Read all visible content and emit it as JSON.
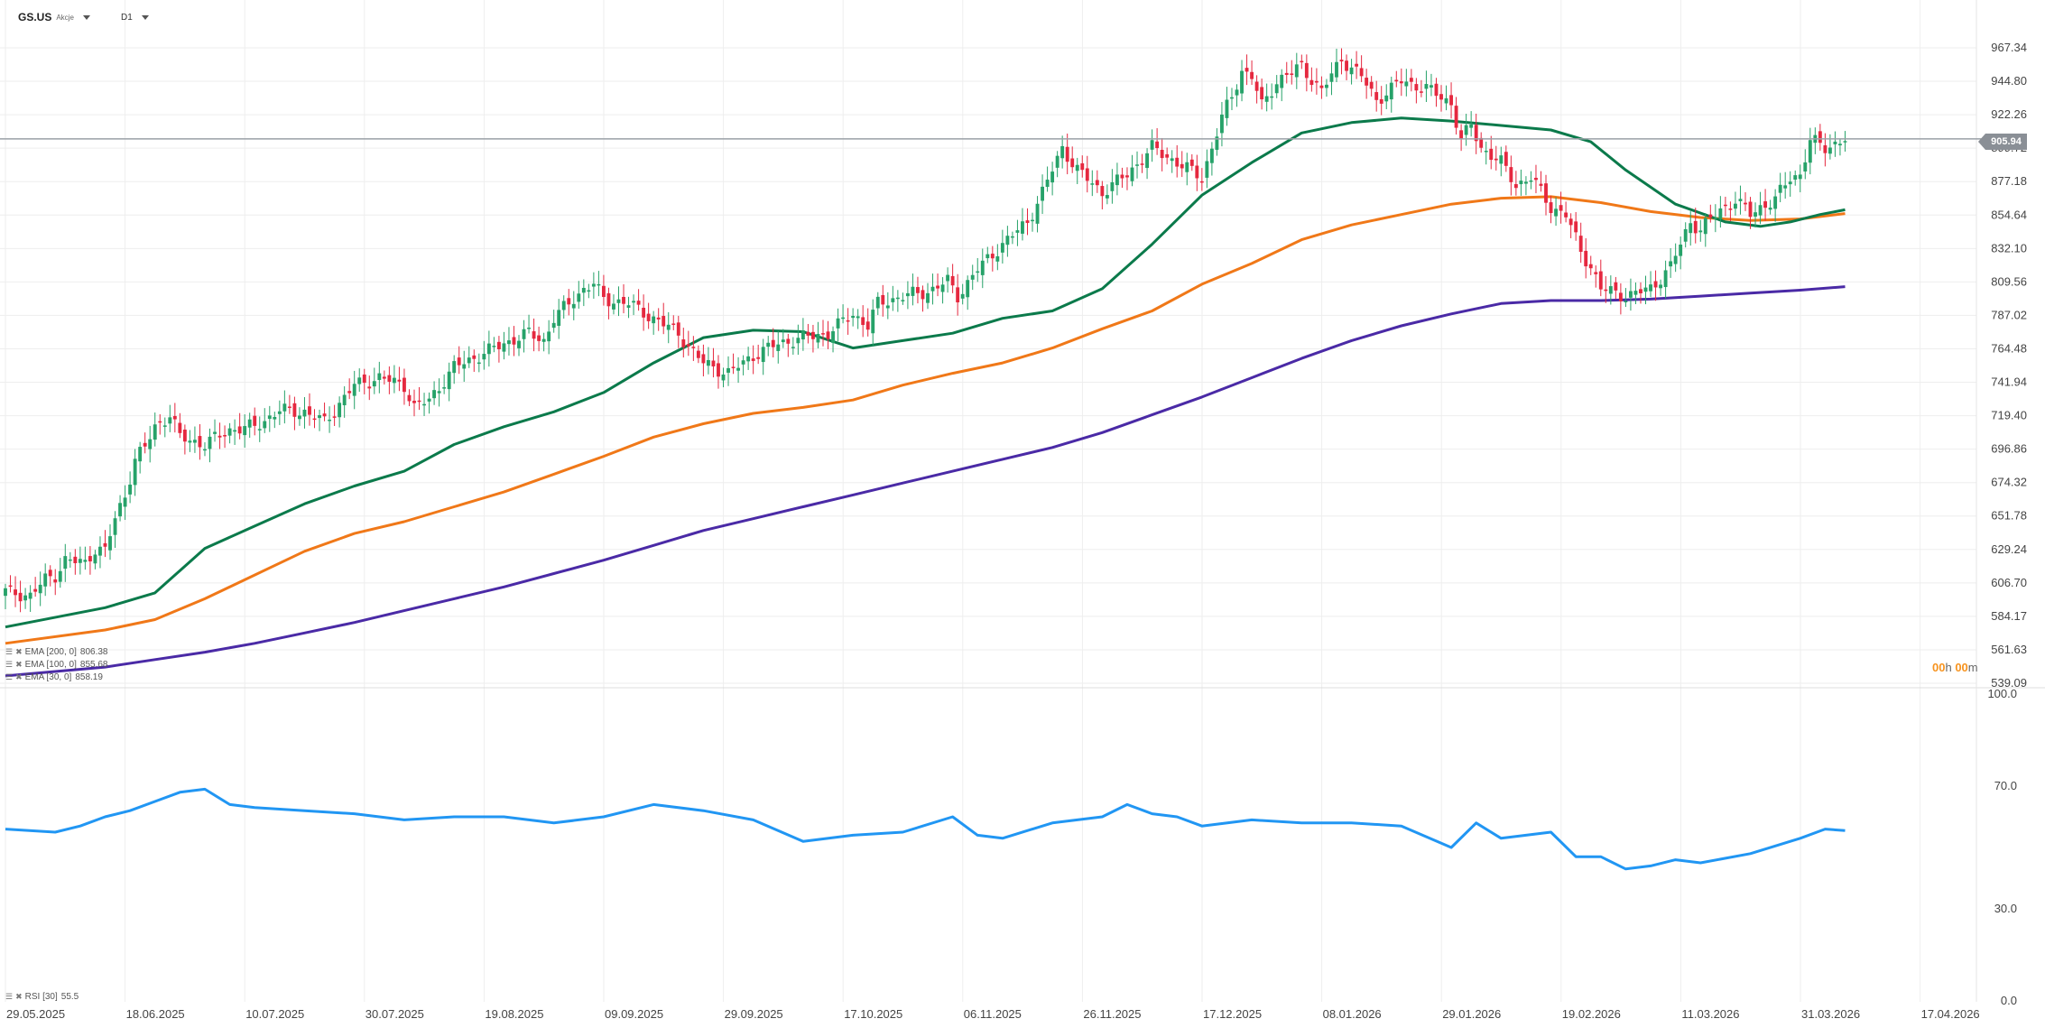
{
  "header": {
    "symbol": "GS.US",
    "symbol_sub": "Akcje",
    "timeframe": "D1"
  },
  "indicators": [
    {
      "label": "EMA [200, 0]",
      "value": "806.38"
    },
    {
      "label": "EMA [100, 0]",
      "value": "855.68"
    },
    {
      "label": "EMA [30, 0]",
      "value": "858.19"
    }
  ],
  "rsi_label": {
    "label": "RSI [30]",
    "value": "55.5"
  },
  "countdown": {
    "h": "00",
    "h_unit": "h",
    "m": "00",
    "m_unit": "m"
  },
  "price_tag": "905.94",
  "colors": {
    "up": "#26a269",
    "down": "#e5283f",
    "ema30": "#0b7a4b",
    "ema100": "#f07818",
    "ema200": "#4a2aa6",
    "rsi": "#2196f3",
    "grid": "#eeeeee",
    "price_line": "#9aa0a6"
  },
  "chart_data": [
    {
      "type": "candlestick",
      "title": "",
      "y_ticks": [
        967.34,
        944.8,
        922.26,
        899.72,
        877.18,
        854.64,
        832.1,
        809.56,
        787.02,
        764.48,
        741.94,
        719.4,
        696.86,
        674.32,
        651.78,
        629.24,
        606.7,
        584.17,
        561.63,
        539.09
      ],
      "ylim": [
        539.09,
        967.34
      ],
      "x_tick_labels": [
        "29.05.2025",
        "18.06.2025",
        "10.07.2025",
        "30.07.2025",
        "19.08.2025",
        "09.09.2025",
        "29.09.2025",
        "17.10.2025",
        "06.11.2025",
        "26.11.2025",
        "17.12.2025",
        "08.01.2026",
        "29.01.2026",
        "19.02.2026",
        "11.03.2026",
        "31.03.2026",
        "17.04.2026"
      ],
      "current_price": 905.94,
      "grid": true,
      "close_path": [
        [
          0,
          601
        ],
        [
          5,
          598
        ],
        [
          8,
          609
        ],
        [
          10,
          612
        ],
        [
          12,
          622
        ],
        [
          16,
          620
        ],
        [
          18,
          630
        ],
        [
          20,
          628
        ],
        [
          22,
          650
        ],
        [
          24,
          666
        ],
        [
          26,
          690
        ],
        [
          28,
          698
        ],
        [
          30,
          712
        ],
        [
          33,
          720
        ],
        [
          35,
          705
        ],
        [
          40,
          700
        ],
        [
          45,
          710
        ],
        [
          50,
          712
        ],
        [
          55,
          723
        ],
        [
          60,
          722
        ],
        [
          64,
          715
        ],
        [
          70,
          740
        ],
        [
          75,
          745
        ],
        [
          80,
          740
        ],
        [
          82,
          725
        ],
        [
          85,
          730
        ],
        [
          90,
          752
        ],
        [
          95,
          760
        ],
        [
          100,
          768
        ],
        [
          105,
          775
        ],
        [
          108,
          770
        ],
        [
          110,
          785
        ],
        [
          113,
          795
        ],
        [
          116,
          805
        ],
        [
          118,
          808
        ],
        [
          120,
          798
        ],
        [
          125,
          795
        ],
        [
          130,
          785
        ],
        [
          135,
          775
        ],
        [
          138,
          762
        ],
        [
          140,
          755
        ],
        [
          145,
          748
        ],
        [
          150,
          760
        ],
        [
          155,
          768
        ],
        [
          160,
          772
        ],
        [
          165,
          775
        ],
        [
          170,
          788
        ],
        [
          173,
          780
        ],
        [
          175,
          795
        ],
        [
          180,
          800
        ],
        [
          185,
          803
        ],
        [
          189,
          810
        ],
        [
          191,
          800
        ],
        [
          195,
          818
        ],
        [
          200,
          835
        ],
        [
          205,
          850
        ],
        [
          208,
          870
        ],
        [
          210,
          885
        ],
        [
          212,
          900
        ],
        [
          215,
          885
        ],
        [
          220,
          870
        ],
        [
          225,
          882
        ],
        [
          230,
          900
        ],
        [
          235,
          890
        ],
        [
          240,
          880
        ],
        [
          244,
          920
        ],
        [
          246,
          935
        ],
        [
          248,
          952
        ],
        [
          250,
          948
        ],
        [
          252,
          928
        ],
        [
          255,
          945
        ],
        [
          260,
          955
        ],
        [
          264,
          938
        ],
        [
          268,
          960
        ],
        [
          272,
          948
        ],
        [
          275,
          932
        ],
        [
          280,
          945
        ],
        [
          285,
          940
        ],
        [
          290,
          930
        ],
        [
          292,
          905
        ],
        [
          294,
          915
        ],
        [
          296,
          900
        ],
        [
          300,
          890
        ],
        [
          303,
          875
        ],
        [
          306,
          880
        ],
        [
          310,
          860
        ],
        [
          313,
          855
        ],
        [
          316,
          830
        ],
        [
          318,
          820
        ],
        [
          320,
          805
        ],
        [
          325,
          800
        ],
        [
          330,
          805
        ],
        [
          334,
          820
        ],
        [
          338,
          850
        ],
        [
          340,
          845
        ],
        [
          344,
          858
        ],
        [
          347,
          865
        ],
        [
          350,
          855
        ],
        [
          352,
          860
        ],
        [
          355,
          865
        ],
        [
          358,
          880
        ],
        [
          360,
          882
        ],
        [
          362,
          905
        ],
        [
          365,
          900
        ],
        [
          369,
          905.94
        ]
      ],
      "series": [
        {
          "name": "EMA [30, 0]",
          "value_last": 858.19,
          "points": [
            [
              0,
              577
            ],
            [
              20,
              590
            ],
            [
              30,
              600
            ],
            [
              35,
              615
            ],
            [
              40,
              630
            ],
            [
              50,
              645
            ],
            [
              60,
              660
            ],
            [
              70,
              672
            ],
            [
              80,
              682
            ],
            [
              90,
              700
            ],
            [
              100,
              712
            ],
            [
              110,
              722
            ],
            [
              120,
              735
            ],
            [
              130,
              755
            ],
            [
              140,
              772
            ],
            [
              150,
              777
            ],
            [
              160,
              776
            ],
            [
              170,
              765
            ],
            [
              180,
              770
            ],
            [
              190,
              775
            ],
            [
              200,
              785
            ],
            [
              210,
              790
            ],
            [
              220,
              805
            ],
            [
              230,
              835
            ],
            [
              240,
              868
            ],
            [
              250,
              890
            ],
            [
              260,
              910
            ],
            [
              270,
              917
            ],
            [
              280,
              920
            ],
            [
              290,
              918
            ],
            [
              300,
              915
            ],
            [
              310,
              912
            ],
            [
              318,
              904
            ],
            [
              325,
              885
            ],
            [
              335,
              862
            ],
            [
              345,
              850
            ],
            [
              352,
              847
            ],
            [
              358,
              850
            ],
            [
              364,
              855
            ],
            [
              369,
              858.19
            ]
          ]
        },
        {
          "name": "EMA [100, 0]",
          "value_last": 855.68,
          "points": [
            [
              0,
              566
            ],
            [
              20,
              575
            ],
            [
              30,
              582
            ],
            [
              40,
              596
            ],
            [
              50,
              612
            ],
            [
              60,
              628
            ],
            [
              70,
              640
            ],
            [
              80,
              648
            ],
            [
              90,
              658
            ],
            [
              100,
              668
            ],
            [
              110,
              680
            ],
            [
              120,
              692
            ],
            [
              130,
              705
            ],
            [
              140,
              714
            ],
            [
              150,
              721
            ],
            [
              160,
              725
            ],
            [
              170,
              730
            ],
            [
              180,
              740
            ],
            [
              190,
              748
            ],
            [
              200,
              755
            ],
            [
              210,
              765
            ],
            [
              220,
              778
            ],
            [
              230,
              790
            ],
            [
              240,
              808
            ],
            [
              250,
              822
            ],
            [
              260,
              838
            ],
            [
              270,
              848
            ],
            [
              280,
              855
            ],
            [
              290,
              862
            ],
            [
              300,
              866
            ],
            [
              310,
              867
            ],
            [
              320,
              863
            ],
            [
              330,
              857
            ],
            [
              340,
              853
            ],
            [
              350,
              851
            ],
            [
              360,
              852
            ],
            [
              369,
              855.68
            ]
          ]
        },
        {
          "name": "EMA [200, 0]",
          "value_last": 806.38,
          "points": [
            [
              0,
              544
            ],
            [
              20,
              550
            ],
            [
              30,
              555
            ],
            [
              40,
              560
            ],
            [
              50,
              566
            ],
            [
              60,
              573
            ],
            [
              70,
              580
            ],
            [
              80,
              588
            ],
            [
              90,
              596
            ],
            [
              100,
              604
            ],
            [
              110,
              613
            ],
            [
              120,
              622
            ],
            [
              130,
              632
            ],
            [
              140,
              642
            ],
            [
              150,
              650
            ],
            [
              160,
              658
            ],
            [
              170,
              666
            ],
            [
              180,
              674
            ],
            [
              190,
              682
            ],
            [
              200,
              690
            ],
            [
              210,
              698
            ],
            [
              220,
              708
            ],
            [
              230,
              720
            ],
            [
              240,
              732
            ],
            [
              250,
              745
            ],
            [
              260,
              758
            ],
            [
              270,
              770
            ],
            [
              280,
              780
            ],
            [
              290,
              788
            ],
            [
              300,
              795
            ],
            [
              310,
              797
            ],
            [
              320,
              797
            ],
            [
              330,
              798
            ],
            [
              340,
              800
            ],
            [
              350,
              802
            ],
            [
              360,
              804
            ],
            [
              369,
              806.38
            ]
          ]
        }
      ]
    },
    {
      "type": "line",
      "title": "",
      "series_name": "RSI [30]",
      "y_ticks": [
        100.0,
        70.0,
        30.0,
        0.0
      ],
      "ylim": [
        0,
        100
      ],
      "last_value": 55.5,
      "x": [
        0,
        10,
        15,
        20,
        25,
        30,
        35,
        40,
        45,
        50,
        60,
        70,
        80,
        90,
        100,
        110,
        120,
        130,
        140,
        150,
        160,
        170,
        180,
        190,
        195,
        200,
        210,
        220,
        225,
        230,
        235,
        240,
        250,
        260,
        270,
        280,
        290,
        295,
        300,
        310,
        315,
        320,
        325,
        330,
        335,
        340,
        350,
        360,
        365,
        369
      ],
      "values": [
        56,
        55,
        57,
        60,
        62,
        65,
        68,
        69,
        64,
        63,
        62,
        61,
        59,
        60,
        60,
        58,
        60,
        64,
        62,
        59,
        52,
        54,
        55,
        60,
        54,
        53,
        58,
        60,
        64,
        61,
        60,
        57,
        59,
        58,
        58,
        57,
        50,
        58,
        53,
        55,
        47,
        47,
        43,
        44,
        46,
        45,
        48,
        53,
        56,
        55.5
      ]
    }
  ]
}
